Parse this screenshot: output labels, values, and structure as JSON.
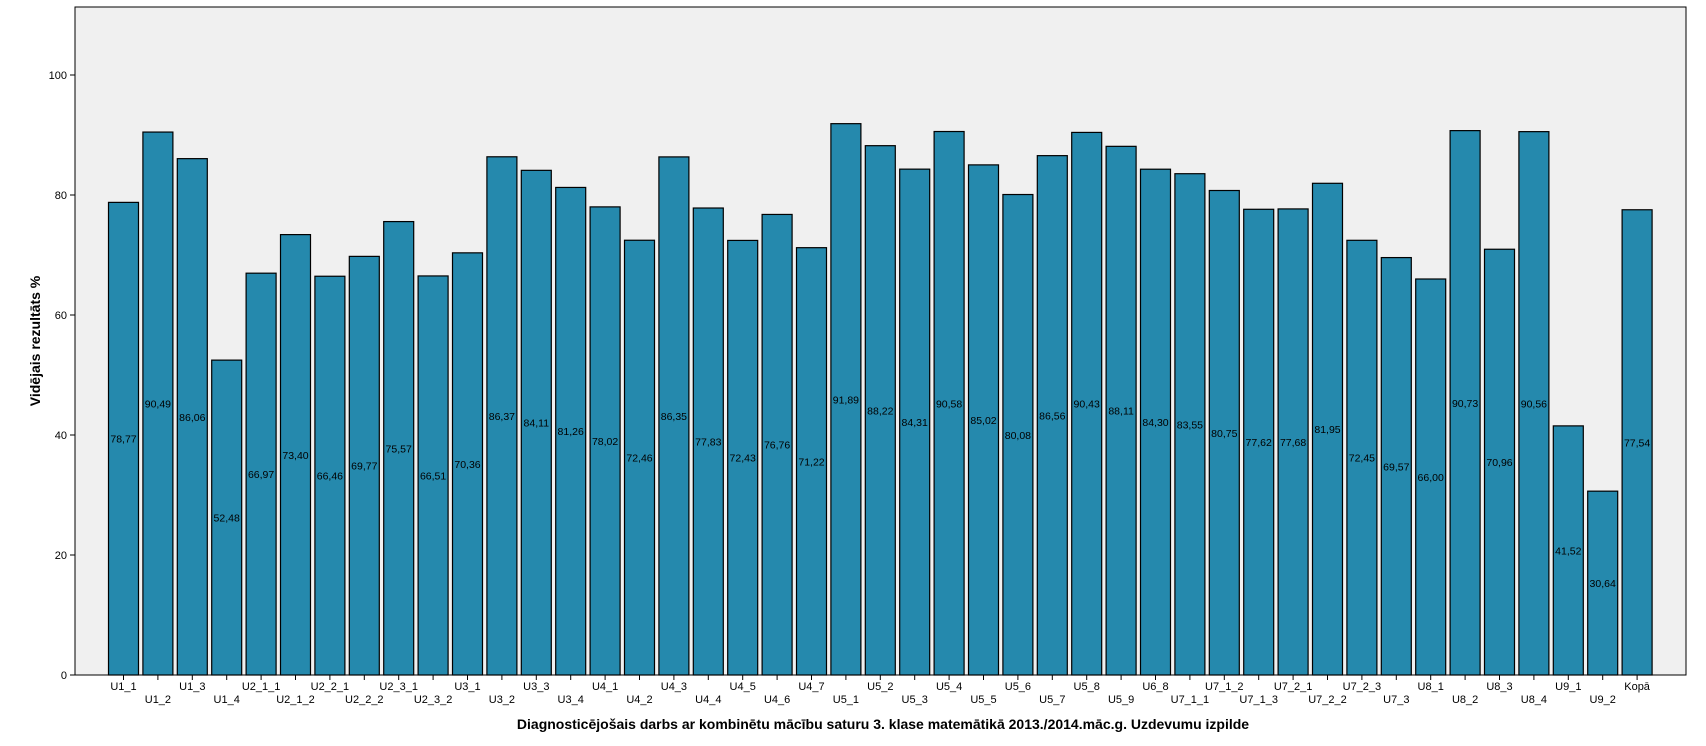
{
  "chart_data": {
    "type": "bar",
    "title": "",
    "xlabel": "Diagnosticējošais darbs ar kombinētu mācību saturu 3. klase matemātikā 2013./2014.māc.g. Uzdevumu izpilde",
    "ylabel": "Vidējais rezultāts %",
    "ylim": [
      0,
      110
    ],
    "yticks": [
      0,
      20,
      40,
      60,
      80,
      100
    ],
    "grid": false,
    "legend": "none",
    "colors": {
      "bar": "#2589ad",
      "plot_background": "#f0f0f0",
      "outline": "#000000"
    },
    "categories": [
      "U1_1",
      "U1_2",
      "U1_3",
      "U1_4",
      "U2_1_1",
      "U2_1_2",
      "U2_2_1",
      "U2_2_2",
      "U2_3_1",
      "U2_3_2",
      "U3_1",
      "U3_2",
      "U3_3",
      "U3_4",
      "U4_1",
      "U4_2",
      "U4_3",
      "U4_4",
      "U4_5",
      "U4_6",
      "U4_7",
      "U5_1",
      "U5_2",
      "U5_3",
      "U5_4",
      "U5_5",
      "U5_6",
      "U5_7",
      "U5_8",
      "U5_9",
      "U6_8",
      "U7_1_1",
      "U7_1_2",
      "U7_1_3",
      "U7_2_1",
      "U7_2_2",
      "U7_2_3",
      "U7_3",
      "U8_1",
      "U8_2",
      "U8_3",
      "U8_4",
      "U9_1",
      "U9_2",
      "Kopā"
    ],
    "values": [
      78.77,
      90.49,
      86.06,
      52.48,
      66.97,
      73.4,
      66.46,
      69.77,
      75.57,
      66.51,
      70.36,
      86.37,
      84.11,
      81.26,
      78.02,
      72.46,
      86.35,
      77.83,
      72.43,
      76.76,
      71.22,
      91.89,
      88.22,
      84.31,
      90.58,
      85.02,
      80.08,
      86.56,
      90.43,
      88.11,
      84.3,
      83.55,
      80.75,
      77.62,
      77.68,
      81.95,
      72.45,
      69.57,
      66.0,
      90.73,
      70.96,
      90.56,
      41.52,
      30.64,
      77.54
    ],
    "value_labels": [
      "78,77",
      "90,49",
      "86,06",
      "52,48",
      "66,97",
      "73,40",
      "66,46",
      "69,77",
      "75,57",
      "66,51",
      "70,36",
      "86,37",
      "84,11",
      "81,26",
      "78,02",
      "72,46",
      "86,35",
      "77,83",
      "72,43",
      "76,76",
      "71,22",
      "91,89",
      "88,22",
      "84,31",
      "90,58",
      "85,02",
      "80,08",
      "86,56",
      "90,43",
      "88,11",
      "84,30",
      "83,55",
      "80,75",
      "77,62",
      "77,68",
      "81,95",
      "72,45",
      "69,57",
      "66,00",
      "90,73",
      "70,96",
      "90,56",
      "41,52",
      "30,64",
      "77,54"
    ]
  }
}
